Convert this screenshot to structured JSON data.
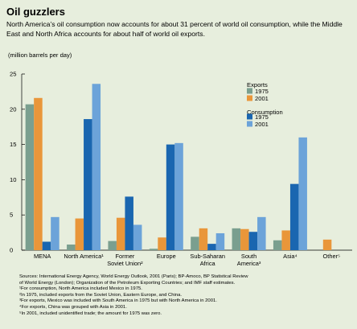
{
  "figure": {
    "title": "Oil guzzlers",
    "subtitle": "North America’s oil consumption now accounts for about 31 percent of world oil consumption, while the Middle East and North Africa accounts for about half of world oil exports."
  },
  "chart_data": {
    "type": "bar",
    "ylabel": "(million barrels per day)",
    "ylim": [
      0,
      25
    ],
    "yticks": [
      0,
      5,
      10,
      15,
      20,
      25
    ],
    "grid": false,
    "categories": [
      "MENA",
      "North America",
      "Former Soviet Union",
      "Europe",
      "Sub-Saharan Africa",
      "South America",
      "Asia",
      "Other"
    ],
    "category_labels": [
      [
        "MENA"
      ],
      [
        "North America¹"
      ],
      [
        "Former",
        "Soviet Union²"
      ],
      [
        "Europe"
      ],
      [
        "Sub-Saharan",
        "Africa"
      ],
      [
        "South",
        "America³"
      ],
      [
        "Asia⁴"
      ],
      [
        "Other⁵"
      ]
    ],
    "series": [
      {
        "name": "1975",
        "group": "Exports",
        "color": "#7a9f8f",
        "values": [
          20.7,
          0.8,
          1.3,
          0.2,
          1.9,
          3.1,
          1.4,
          0
        ]
      },
      {
        "name": "2001",
        "group": "Exports",
        "color": "#e9963a",
        "values": [
          21.6,
          4.5,
          4.6,
          1.8,
          3.1,
          3.0,
          2.8,
          1.5
        ]
      },
      {
        "name": "1975",
        "group": "Consumption",
        "color": "#1a66b0",
        "values": [
          1.2,
          18.6,
          7.6,
          15.0,
          0.9,
          2.6,
          9.4,
          0
        ]
      },
      {
        "name": "2001",
        "group": "Consumption",
        "color": "#6ca3d9",
        "values": [
          4.7,
          23.6,
          3.6,
          15.2,
          2.4,
          4.7,
          16.0,
          0
        ]
      }
    ],
    "legend": {
      "placement": "top-right",
      "groups": [
        {
          "title": "Exports",
          "entries": [
            "1975",
            "2001"
          ]
        },
        {
          "title": "Consumption",
          "entries": [
            "1975",
            "2001"
          ]
        }
      ]
    }
  },
  "notes": [
    "Sources: International Energy Agency, World Energy Outlook, 2001 (Paris); BP-Amoco, BP Statistical Review",
    "of World Energy (London); Organization of the Petroleum Exporting Countries; and IMF staff estimates.",
    "¹For consumption, North America included Mexico in 1975.",
    "²In 1975, included exports from the Soviet Union, Eastern Europe, and China.",
    "³For exports, Mexico was included with South America in 1975 but with North America in 2001.",
    "⁴For exports, China was grouped with Asia in 2001.",
    "⁵In 2001, included unidentified trade; the amount for 1975 was zero."
  ]
}
